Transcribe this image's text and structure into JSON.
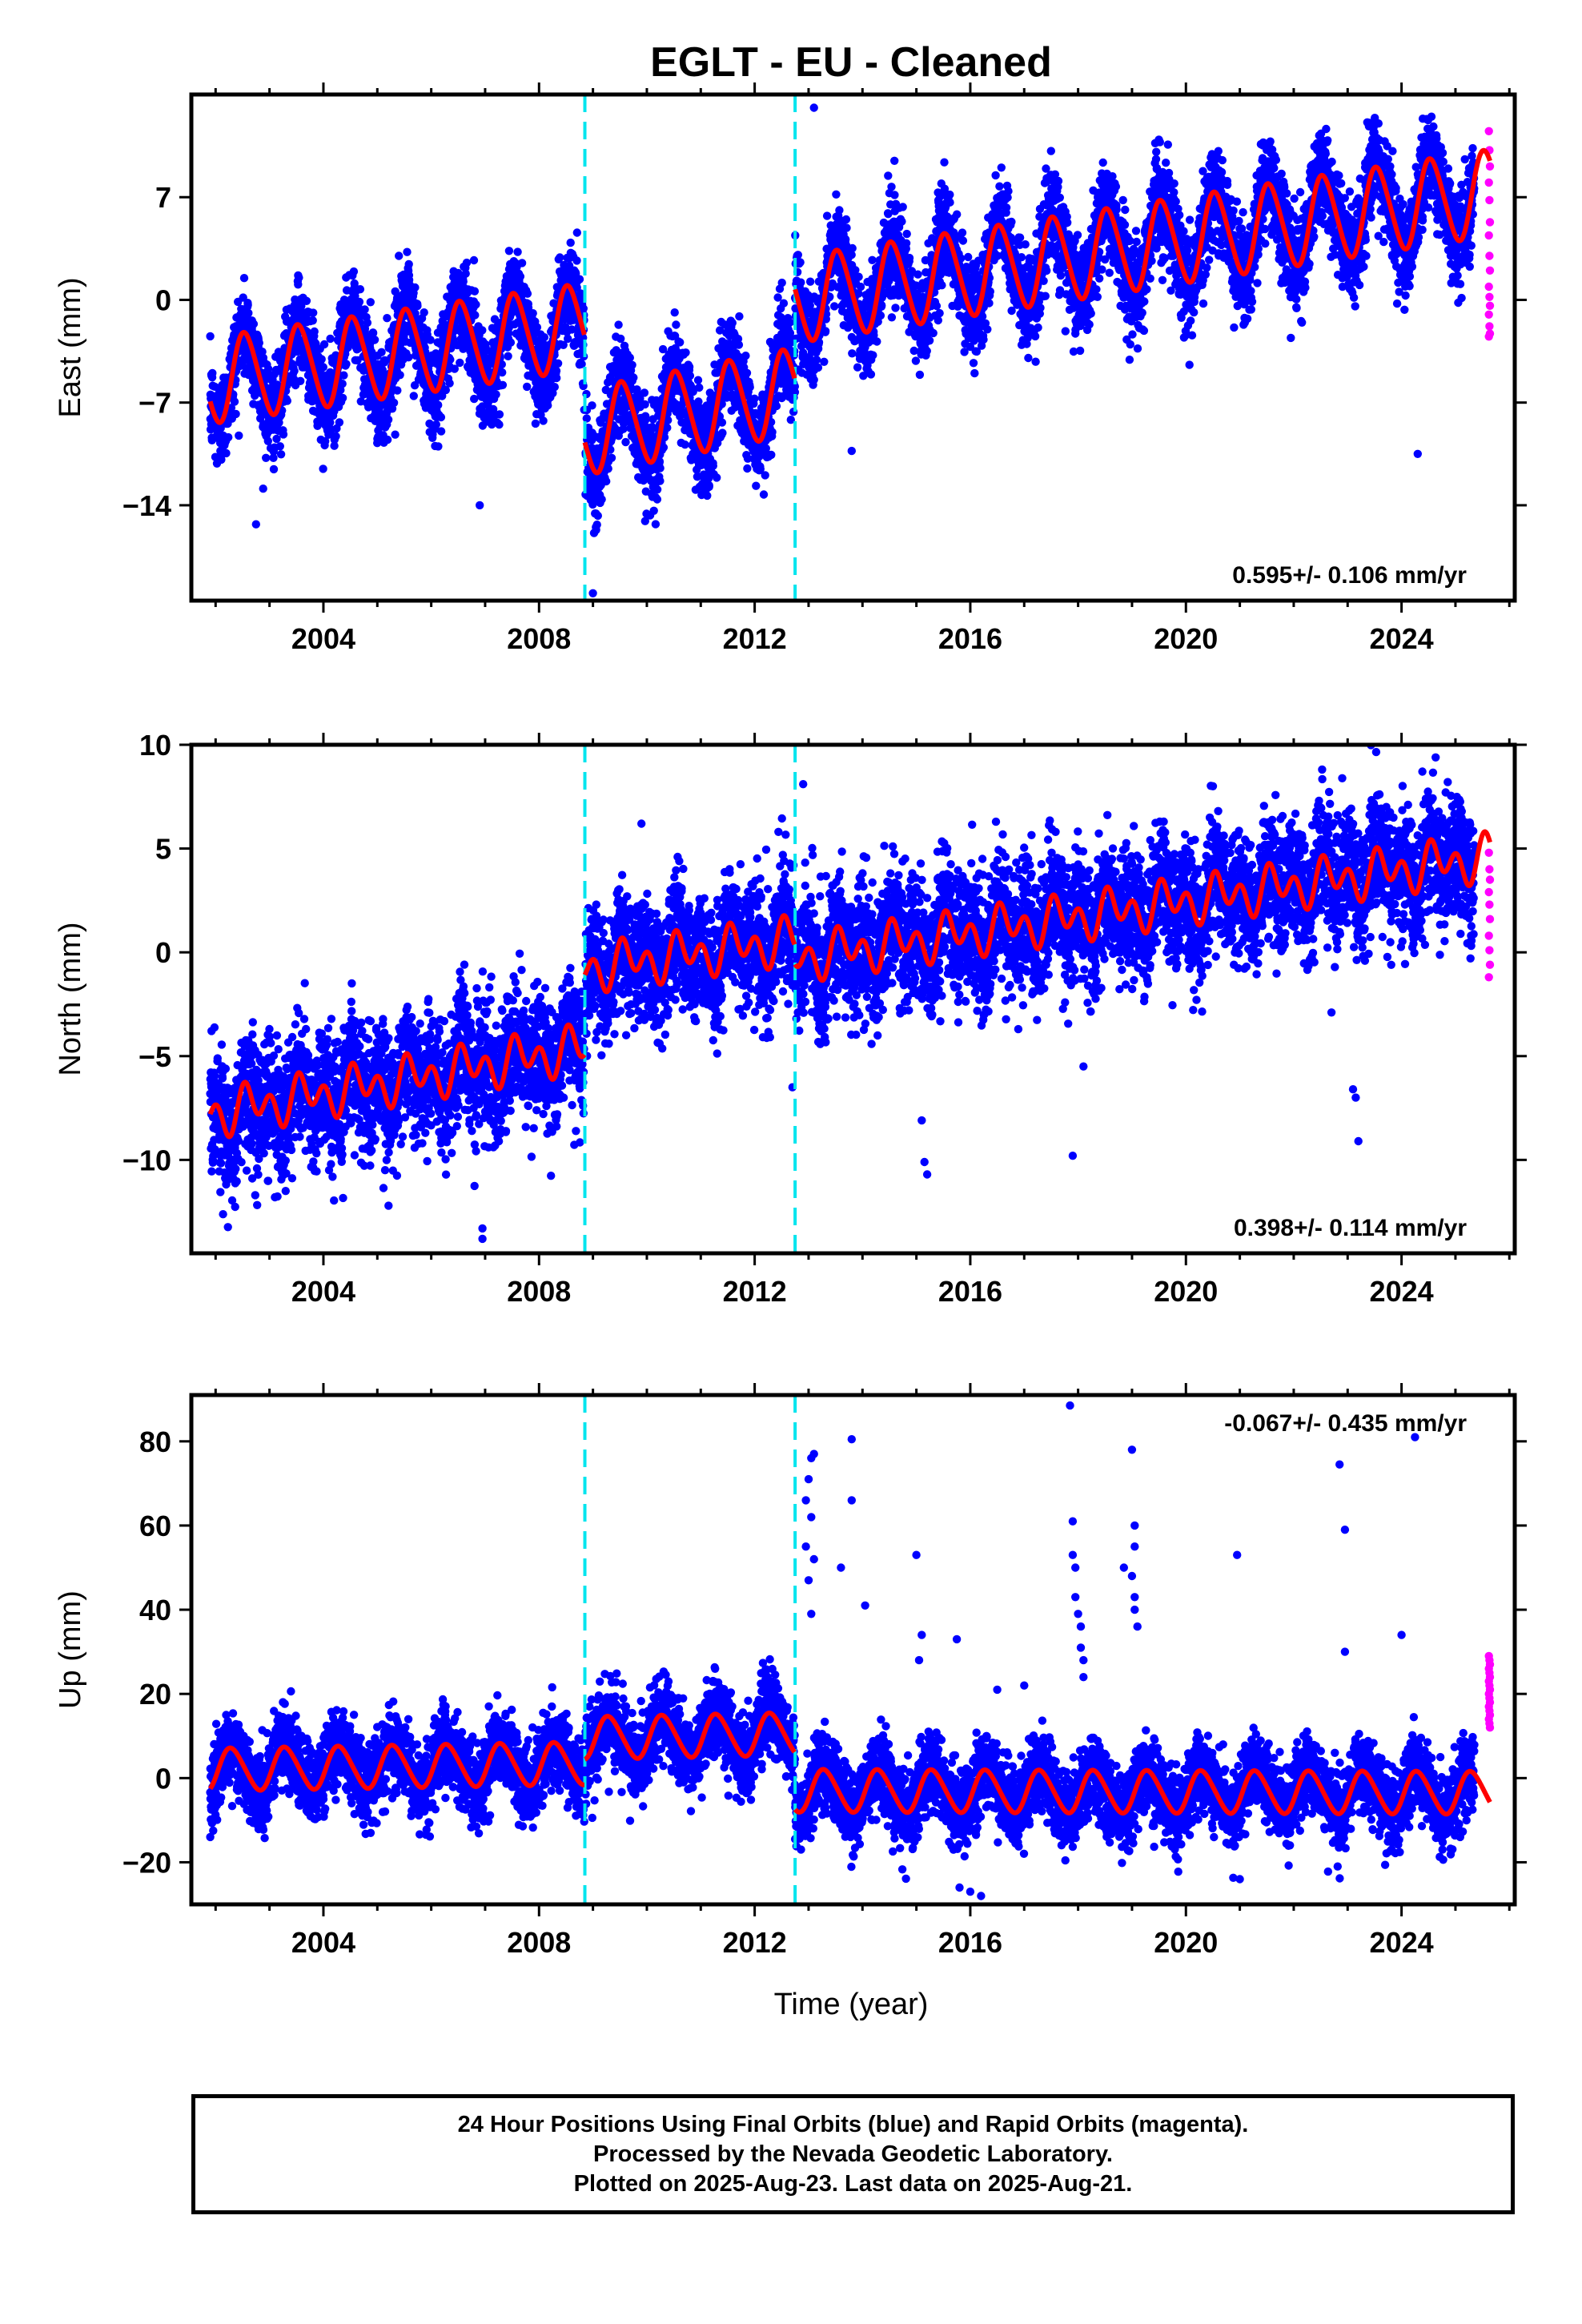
{
  "title": "EGLT  - EU - Cleaned",
  "xlabel": "Time (year)",
  "colors": {
    "final": "#0000ff",
    "rapid": "#ff00ff",
    "model": "#ff0000",
    "offset": "#00e5ee"
  },
  "notes": [
    "24 Hour Positions Using Final Orbits (blue) and Rapid Orbits (magenta).",
    "Processed by the Nevada Geodetic Laboratory.",
    "Plotted on 2025-Aug-23. Last data on 2025-Aug-21."
  ],
  "chart_data": [
    {
      "type": "scatter",
      "ylabel": "East (mm)",
      "rate_label": "0.595+/- 0.106 mm/yr",
      "xlim": [
        2001.55,
        2026.1
      ],
      "ylim": [
        -20.5,
        14
      ],
      "xticks": [
        2004,
        2008,
        2012,
        2016,
        2020,
        2024
      ],
      "yticks": [
        7,
        0,
        -7,
        -14
      ],
      "offsets": [
        2008.85,
        2012.75
      ],
      "data_range": [
        2001.9,
        2025.35
      ],
      "rapid_range": [
        2025.35,
        2025.64
      ],
      "model": {
        "segments": [
          {
            "start": 2001.9,
            "end": 2008.85,
            "y0": -5.5,
            "y1": -1.8
          },
          {
            "start": 2008.85,
            "end": 2012.75,
            "y0": -9.0,
            "y1": -6.2
          },
          {
            "start": 2012.75,
            "end": 2025.64,
            "y0": 0.0,
            "y1": 7.3
          }
        ],
        "annual_amp": 2.9,
        "annual_phase": 0.3,
        "semiannual_amp": 0.3
      },
      "scatter_sigma": 1.6,
      "outliers": [
        {
          "x": 2002.75,
          "y": -15.3
        },
        {
          "x": 2009.0,
          "y": -20.0
        },
        {
          "x": 2013.1,
          "y": 13.1
        },
        {
          "x": 2013.8,
          "y": -10.3
        },
        {
          "x": 2006.9,
          "y": -14.0
        },
        {
          "x": 2024.3,
          "y": -10.5
        },
        {
          "x": 2016.1,
          "y": -3.5
        }
      ],
      "rapid_values": [
        11.5,
        10.2,
        9.1,
        8.0,
        6.8,
        5.3,
        4.4,
        3.0,
        2.0,
        0.9,
        0.2,
        -0.4,
        -1.0,
        -1.8,
        -2.3,
        -2.5
      ]
    },
    {
      "type": "scatter",
      "ylabel": "North (mm)",
      "rate_label": "0.398+/- 0.114 mm/yr",
      "xlim": [
        2001.55,
        2026.1
      ],
      "ylim": [
        -14.5,
        10
      ],
      "xticks": [
        2004,
        2008,
        2012,
        2016,
        2020,
        2024
      ],
      "yticks": [
        10,
        5,
        0,
        -5,
        -10
      ],
      "offsets": [
        2008.85,
        2012.75
      ],
      "data_range": [
        2001.9,
        2025.35
      ],
      "rapid_range": [
        2025.35,
        2025.64
      ],
      "model": {
        "segments": [
          {
            "start": 2001.9,
            "end": 2008.85,
            "y0": -7.8,
            "y1": -4.6
          },
          {
            "start": 2008.85,
            "end": 2012.75,
            "y0": -0.8,
            "y1": 0.6
          },
          {
            "start": 2012.75,
            "end": 2025.64,
            "y0": -0.3,
            "y1": 4.6
          }
        ],
        "annual_amp": 0.6,
        "annual_phase": 0.4,
        "semiannual_amp": 0.8
      },
      "scatter_sigma": 1.5,
      "outliers": [
        {
          "x": 2006.95,
          "y": -13.8
        },
        {
          "x": 2006.95,
          "y": -13.3
        },
        {
          "x": 2003.1,
          "y": -11.8
        },
        {
          "x": 2003.3,
          "y": -11.5
        },
        {
          "x": 2009.9,
          "y": 6.2
        },
        {
          "x": 2012.9,
          "y": 8.1
        },
        {
          "x": 2015.1,
          "y": -8.1
        },
        {
          "x": 2015.15,
          "y": -10.1
        },
        {
          "x": 2015.2,
          "y": -10.7
        },
        {
          "x": 2017.9,
          "y": -9.8
        },
        {
          "x": 2018.1,
          "y": -5.5
        },
        {
          "x": 2023.1,
          "y": -6.6
        },
        {
          "x": 2023.15,
          "y": -7.0
        },
        {
          "x": 2023.2,
          "y": -9.1
        },
        {
          "x": 2012.7,
          "y": -6.5
        },
        {
          "x": 2022.7,
          "y": -2.9
        }
      ],
      "rapid_values": [
        4.8,
        4.0,
        3.5,
        2.9,
        2.3,
        1.6,
        0.8,
        0.1,
        -0.6,
        -1.2
      ]
    },
    {
      "type": "scatter",
      "ylabel": "Up (mm)",
      "rate_label": "-0.067+/- 0.435 mm/yr",
      "xlim": [
        2001.55,
        2026.1
      ],
      "ylim": [
        -30,
        91
      ],
      "xticks": [
        2004,
        2008,
        2012,
        2016,
        2020,
        2024
      ],
      "yticks": [
        80,
        60,
        40,
        20,
        0,
        -20
      ],
      "offsets": [
        2008.85,
        2012.75
      ],
      "data_range": [
        2001.9,
        2025.35
      ],
      "rapid_range": [
        2025.35,
        2025.64
      ],
      "model": {
        "segments": [
          {
            "start": 2001.9,
            "end": 2008.85,
            "y0": 2.0,
            "y1": 3.5
          },
          {
            "start": 2008.85,
            "end": 2012.75,
            "y0": 9.5,
            "y1": 10.5
          },
          {
            "start": 2012.75,
            "end": 2025.64,
            "y0": -3.0,
            "y1": -3.5
          }
        ],
        "annual_amp": 5.0,
        "annual_phase": 0.05,
        "semiannual_amp": 0.5
      },
      "scatter_sigma": 4.5,
      "outliers": [
        {
          "x": 2013.05,
          "y": 76
        },
        {
          "x": 2013.1,
          "y": 77
        },
        {
          "x": 2013.0,
          "y": 71
        },
        {
          "x": 2012.95,
          "y": 66
        },
        {
          "x": 2013.05,
          "y": 62
        },
        {
          "x": 2012.95,
          "y": 55
        },
        {
          "x": 2013.1,
          "y": 52
        },
        {
          "x": 2013.0,
          "y": 47
        },
        {
          "x": 2013.05,
          "y": 39
        },
        {
          "x": 2013.8,
          "y": 80.5
        },
        {
          "x": 2013.8,
          "y": 66
        },
        {
          "x": 2014.05,
          "y": 41
        },
        {
          "x": 2013.6,
          "y": 50
        },
        {
          "x": 2015.0,
          "y": 53
        },
        {
          "x": 2015.05,
          "y": 28
        },
        {
          "x": 2015.1,
          "y": 34
        },
        {
          "x": 2015.75,
          "y": 33
        },
        {
          "x": 2016.5,
          "y": 21
        },
        {
          "x": 2017.0,
          "y": 22
        },
        {
          "x": 2017.85,
          "y": 88.5
        },
        {
          "x": 2017.9,
          "y": 61
        },
        {
          "x": 2017.9,
          "y": 53
        },
        {
          "x": 2017.95,
          "y": 50
        },
        {
          "x": 2017.95,
          "y": 43
        },
        {
          "x": 2018.0,
          "y": 39
        },
        {
          "x": 2018.05,
          "y": 36
        },
        {
          "x": 2018.05,
          "y": 31
        },
        {
          "x": 2018.1,
          "y": 28
        },
        {
          "x": 2018.1,
          "y": 24
        },
        {
          "x": 2018.85,
          "y": 50
        },
        {
          "x": 2019.0,
          "y": 78
        },
        {
          "x": 2019.05,
          "y": 60
        },
        {
          "x": 2019.05,
          "y": 55
        },
        {
          "x": 2019.0,
          "y": 48
        },
        {
          "x": 2019.05,
          "y": 43
        },
        {
          "x": 2019.05,
          "y": 40
        },
        {
          "x": 2019.1,
          "y": 36
        },
        {
          "x": 2020.95,
          "y": 53
        },
        {
          "x": 2022.85,
          "y": 74.5
        },
        {
          "x": 2022.95,
          "y": 59
        },
        {
          "x": 2022.95,
          "y": 30
        },
        {
          "x": 2024.0,
          "y": 34
        },
        {
          "x": 2024.25,
          "y": 81
        },
        {
          "x": 2016.0,
          "y": -27
        },
        {
          "x": 2016.2,
          "y": -28
        },
        {
          "x": 2015.8,
          "y": -26
        },
        {
          "x": 2021.0,
          "y": -24
        },
        {
          "x": 2001.9,
          "y": -14
        }
      ],
      "rapid_values": [
        29,
        28,
        27,
        26,
        25,
        24,
        23,
        22,
        21,
        20,
        19,
        18,
        17,
        16,
        15,
        14,
        13,
        12
      ]
    }
  ]
}
